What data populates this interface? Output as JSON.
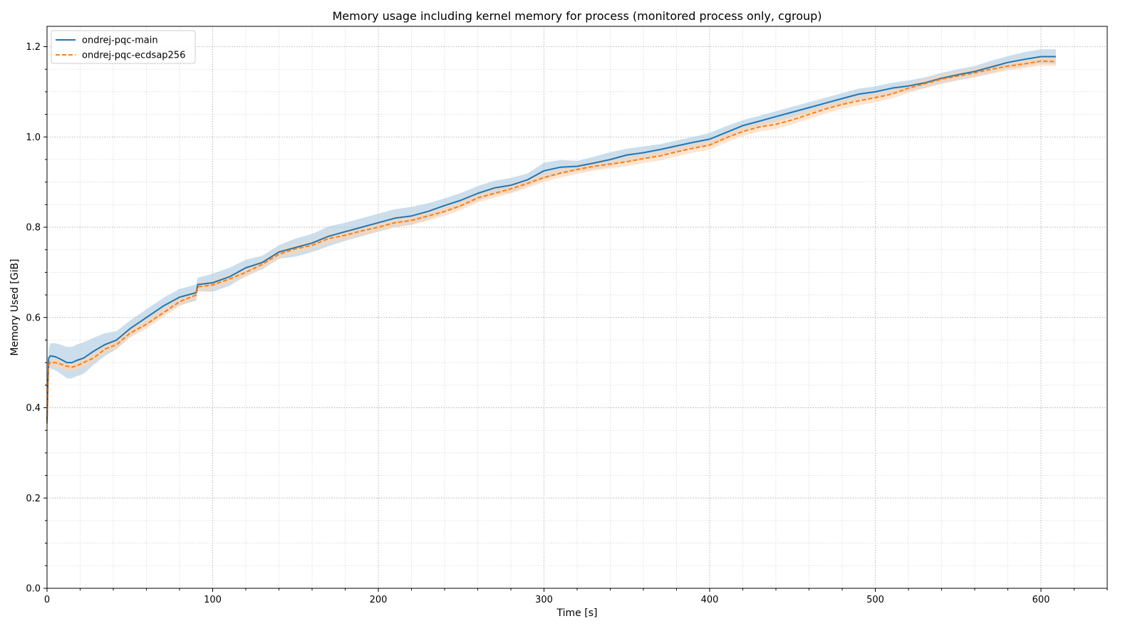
{
  "chart_data": {
    "type": "line",
    "title": "Memory usage including kernel memory for process (monitored process only, cgroup)",
    "xlabel": "Time [s]",
    "ylabel": "Memory Used [GiB]",
    "xlim": [
      0,
      640
    ],
    "ylim": [
      0,
      1.245
    ],
    "xticks": [
      0,
      100,
      200,
      300,
      400,
      500,
      600
    ],
    "yticks": [
      0.0,
      0.2,
      0.4,
      0.6,
      0.8,
      1.0,
      1.2
    ],
    "grid": true,
    "grid_minor": true,
    "legend_position": "upper-left",
    "series": [
      {
        "name": "ondrej-pqc-main",
        "color": "#1f77b4",
        "band_color": "#aac8e0",
        "linestyle": "solid",
        "x": [
          0,
          1,
          2,
          5,
          8,
          12,
          15,
          18,
          22,
          28,
          35,
          42,
          50,
          60,
          70,
          80,
          90,
          91,
          100,
          110,
          120,
          130,
          140,
          150,
          160,
          170,
          180,
          190,
          200,
          210,
          220,
          230,
          240,
          250,
          260,
          270,
          280,
          290,
          300,
          310,
          320,
          330,
          340,
          350,
          360,
          370,
          380,
          390,
          400,
          410,
          420,
          430,
          440,
          450,
          460,
          470,
          480,
          490,
          500,
          510,
          520,
          530,
          540,
          550,
          560,
          570,
          580,
          590,
          600,
          609
        ],
        "y": [
          0.37,
          0.51,
          0.515,
          0.513,
          0.508,
          0.5,
          0.5,
          0.505,
          0.51,
          0.525,
          0.54,
          0.55,
          0.575,
          0.6,
          0.625,
          0.645,
          0.655,
          0.673,
          0.677,
          0.69,
          0.71,
          0.722,
          0.745,
          0.755,
          0.765,
          0.78,
          0.79,
          0.8,
          0.81,
          0.82,
          0.825,
          0.835,
          0.848,
          0.86,
          0.875,
          0.887,
          0.893,
          0.905,
          0.925,
          0.933,
          0.935,
          0.942,
          0.95,
          0.96,
          0.965,
          0.972,
          0.98,
          0.988,
          0.995,
          1.01,
          1.025,
          1.035,
          1.045,
          1.055,
          1.065,
          1.075,
          1.085,
          1.095,
          1.1,
          1.108,
          1.113,
          1.12,
          1.13,
          1.138,
          1.145,
          1.155,
          1.165,
          1.172,
          1.178,
          1.178
        ],
        "band": [
          0.02,
          0.02,
          0.028,
          0.03,
          0.032,
          0.035,
          0.035,
          0.035,
          0.035,
          0.03,
          0.025,
          0.02,
          0.018,
          0.018,
          0.018,
          0.018,
          0.018,
          0.015,
          0.02,
          0.02,
          0.018,
          0.015,
          0.015,
          0.02,
          0.02,
          0.022,
          0.02,
          0.02,
          0.02,
          0.02,
          0.02,
          0.018,
          0.016,
          0.016,
          0.016,
          0.016,
          0.016,
          0.014,
          0.018,
          0.016,
          0.012,
          0.014,
          0.016,
          0.014,
          0.014,
          0.012,
          0.012,
          0.012,
          0.014,
          0.014,
          0.012,
          0.012,
          0.012,
          0.012,
          0.012,
          0.012,
          0.012,
          0.012,
          0.012,
          0.012,
          0.012,
          0.012,
          0.012,
          0.012,
          0.012,
          0.014,
          0.014,
          0.016,
          0.016,
          0.016
        ]
      },
      {
        "name": "ondrej-pqc-ecdsap256",
        "color": "#ff7f0e",
        "band_color": "#ffd3b0",
        "linestyle": "dashed",
        "x": [
          0,
          1,
          2,
          5,
          8,
          12,
          15,
          18,
          22,
          28,
          35,
          42,
          50,
          60,
          70,
          80,
          90,
          91,
          100,
          110,
          120,
          130,
          140,
          150,
          160,
          170,
          180,
          190,
          200,
          210,
          220,
          230,
          240,
          250,
          260,
          270,
          280,
          290,
          300,
          310,
          320,
          330,
          340,
          350,
          360,
          370,
          380,
          390,
          400,
          410,
          420,
          430,
          440,
          450,
          460,
          470,
          480,
          490,
          500,
          510,
          520,
          530,
          540,
          550,
          560,
          570,
          580,
          590,
          600,
          609
        ],
        "y": [
          0.365,
          0.495,
          0.5,
          0.5,
          0.497,
          0.492,
          0.49,
          0.493,
          0.5,
          0.51,
          0.53,
          0.54,
          0.565,
          0.585,
          0.61,
          0.635,
          0.65,
          0.668,
          0.672,
          0.685,
          0.7,
          0.718,
          0.74,
          0.752,
          0.76,
          0.775,
          0.782,
          0.792,
          0.8,
          0.81,
          0.815,
          0.825,
          0.835,
          0.848,
          0.865,
          0.875,
          0.885,
          0.897,
          0.91,
          0.92,
          0.928,
          0.935,
          0.94,
          0.945,
          0.952,
          0.958,
          0.967,
          0.975,
          0.982,
          0.998,
          1.012,
          1.022,
          1.028,
          1.038,
          1.05,
          1.062,
          1.072,
          1.08,
          1.087,
          1.095,
          1.108,
          1.118,
          1.128,
          1.135,
          1.142,
          1.15,
          1.157,
          1.162,
          1.168,
          1.167
        ],
        "band": [
          0.01,
          0.01,
          0.01,
          0.01,
          0.01,
          0.01,
          0.01,
          0.01,
          0.01,
          0.01,
          0.01,
          0.01,
          0.01,
          0.01,
          0.01,
          0.01,
          0.01,
          0.01,
          0.01,
          0.01,
          0.01,
          0.01,
          0.01,
          0.01,
          0.01,
          0.01,
          0.01,
          0.01,
          0.01,
          0.01,
          0.01,
          0.01,
          0.01,
          0.01,
          0.01,
          0.01,
          0.01,
          0.01,
          0.01,
          0.01,
          0.01,
          0.01,
          0.01,
          0.01,
          0.01,
          0.01,
          0.01,
          0.01,
          0.01,
          0.01,
          0.01,
          0.01,
          0.01,
          0.01,
          0.01,
          0.01,
          0.01,
          0.01,
          0.01,
          0.01,
          0.01,
          0.01,
          0.01,
          0.01,
          0.01,
          0.01,
          0.01,
          0.01,
          0.01,
          0.01
        ]
      }
    ]
  }
}
